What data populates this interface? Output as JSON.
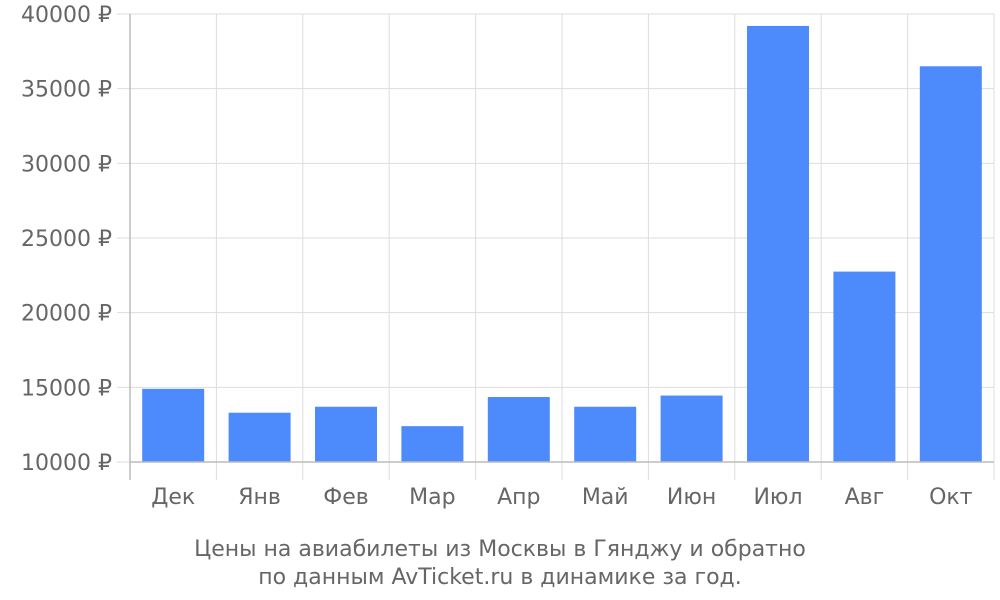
{
  "chart_data": {
    "type": "bar",
    "categories": [
      "Дек",
      "Янв",
      "Фев",
      "Мар",
      "Апр",
      "Май",
      "Июн",
      "Июл",
      "Авг",
      "Окт"
    ],
    "values": [
      14900,
      13300,
      13700,
      12400,
      14350,
      13700,
      14450,
      39200,
      22750,
      36500
    ],
    "ylim": [
      10000,
      40000
    ],
    "yticks": [
      10000,
      15000,
      20000,
      25000,
      30000,
      35000,
      40000
    ],
    "ytick_suffix": " ₽",
    "bar_color": "#4d8afc",
    "grid": true,
    "caption_lines": [
      "Цены на авиабилеты из Москвы в Гянджу и обратно",
      "по данным AvTicket.ru в динамике за год."
    ]
  }
}
